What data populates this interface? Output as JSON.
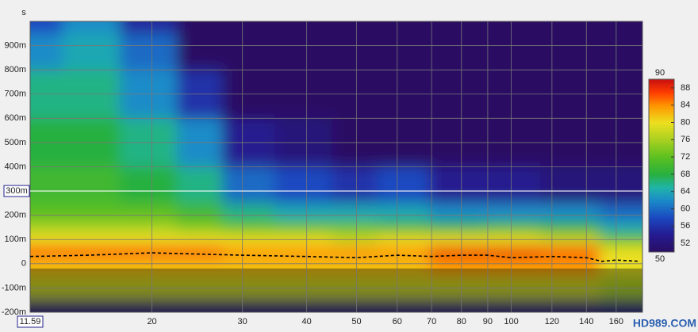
{
  "chart_data": {
    "type": "spectrogram",
    "y_unit_label": "s",
    "xlim": [
      11.59,
      180
    ],
    "x_log": true,
    "xticks": [
      20,
      30,
      40,
      50,
      60,
      70,
      80,
      90,
      100,
      120,
      140,
      160
    ],
    "ylim": [
      -0.2,
      1.0
    ],
    "yticks": [
      {
        "value": -0.2,
        "label": "-200m"
      },
      {
        "value": -0.1,
        "label": "-100m"
      },
      0,
      {
        "value": 0.1,
        "label": "100m"
      },
      {
        "value": 0.2,
        "label": "200m"
      },
      {
        "value": 0.3,
        "label": "300m"
      },
      {
        "value": 0.4,
        "label": "400m"
      },
      {
        "value": 0.5,
        "label": "500m"
      },
      {
        "value": 0.6,
        "label": "600m"
      },
      {
        "value": 0.7,
        "label": "700m"
      },
      {
        "value": 0.8,
        "label": "800m"
      },
      {
        "value": 0.9,
        "label": "900m"
      }
    ],
    "grid": true,
    "cursor_y": {
      "value": 0.3,
      "label": "300m"
    },
    "frequencies": [
      12,
      15,
      20,
      25,
      30,
      40,
      50,
      60,
      80,
      100,
      130,
      170
    ],
    "times": [
      1.0,
      0.9,
      0.7,
      0.5,
      0.3,
      0.2,
      0.15,
      0.1,
      0.05,
      0,
      -0.1,
      -0.2
    ],
    "z": [
      [
        58,
        62,
        55,
        50,
        50,
        50,
        50,
        50,
        50,
        50,
        50,
        50
      ],
      [
        62,
        64,
        60,
        50,
        50,
        50,
        50,
        50,
        50,
        50,
        50,
        50
      ],
      [
        66,
        66,
        62,
        56,
        50,
        50,
        50,
        50,
        50,
        50,
        50,
        50
      ],
      [
        68,
        68,
        66,
        62,
        54,
        52,
        50,
        50,
        50,
        50,
        50,
        50
      ],
      [
        70,
        70,
        68,
        66,
        60,
        58,
        56,
        58,
        54,
        54,
        52,
        52
      ],
      [
        72,
        72,
        72,
        70,
        66,
        64,
        64,
        64,
        62,
        62,
        62,
        60
      ],
      [
        76,
        76,
        76,
        74,
        72,
        72,
        72,
        70,
        68,
        70,
        68,
        64
      ],
      [
        80,
        80,
        80,
        80,
        80,
        80,
        78,
        80,
        80,
        80,
        78,
        72
      ],
      [
        86,
        86,
        86,
        86,
        84,
        84,
        84,
        84,
        88,
        88,
        86,
        80
      ],
      [
        82,
        82,
        82,
        82,
        82,
        82,
        82,
        82,
        84,
        84,
        84,
        80
      ],
      [
        78,
        78,
        78,
        78,
        78,
        78,
        78,
        78,
        78,
        78,
        78,
        76
      ],
      [
        52,
        52,
        52,
        52,
        52,
        52,
        52,
        52,
        52,
        52,
        52,
        52
      ]
    ],
    "peak_line": {
      "x": [
        11.59,
        15,
        20,
        30,
        40,
        50,
        60,
        70,
        80,
        90,
        100,
        120,
        140,
        150,
        160,
        178
      ],
      "values": [
        0.03,
        0.035,
        0.045,
        0.035,
        0.03,
        0.025,
        0.035,
        0.03,
        0.035,
        0.035,
        0.025,
        0.03,
        0.025,
        0.01,
        0.015,
        0.01
      ]
    },
    "colorbar": {
      "lim": [
        50,
        90
      ],
      "ticks": [
        52,
        56,
        60,
        64,
        68,
        72,
        76,
        80,
        84,
        88
      ],
      "colorscale": [
        [
          50,
          "#2a0e63"
        ],
        [
          54,
          "#251a90"
        ],
        [
          58,
          "#1a48c0"
        ],
        [
          62,
          "#1a8cc8"
        ],
        [
          65,
          "#20b4a8"
        ],
        [
          68,
          "#28b040"
        ],
        [
          72,
          "#5cc020"
        ],
        [
          76,
          "#a8d020"
        ],
        [
          80,
          "#ece020"
        ],
        [
          84,
          "#ff9400"
        ],
        [
          87,
          "#ff3c00"
        ],
        [
          90,
          "#c81010"
        ]
      ]
    },
    "watermark": "HD989.COM"
  }
}
